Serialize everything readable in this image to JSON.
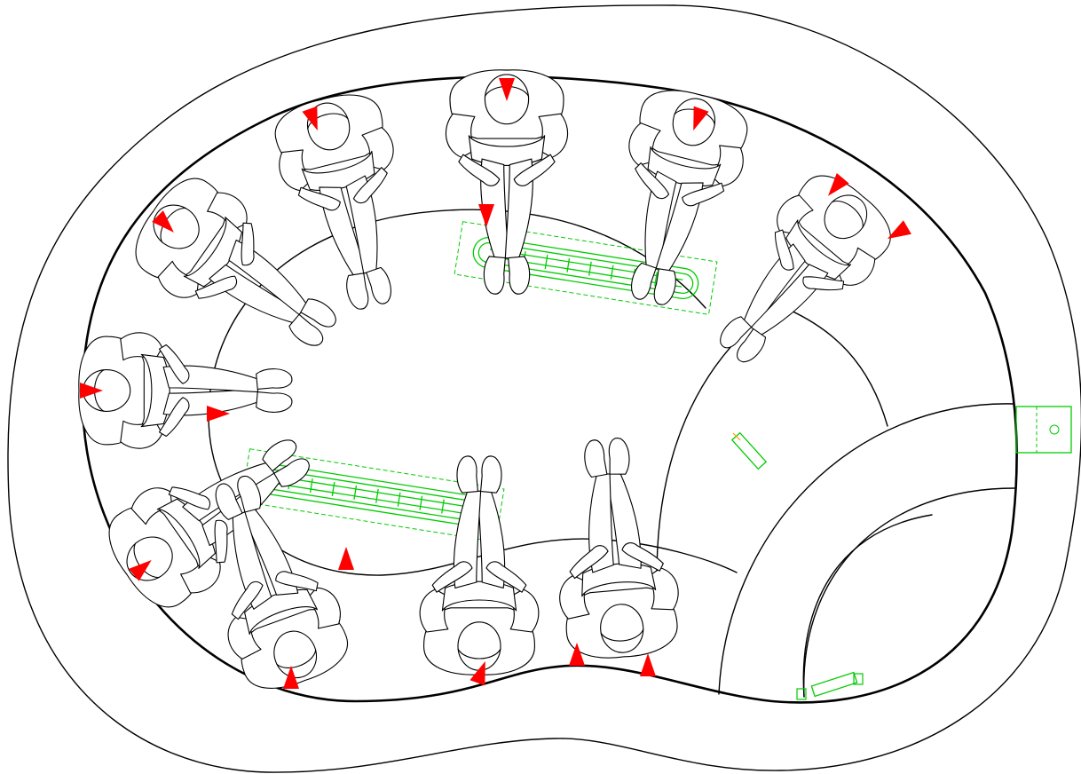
{
  "colors": {
    "outline": "#000000",
    "seat_marker": "#ff0000",
    "equipment": "#00cc00",
    "accent_warn": "#ff9900",
    "background": "#ffffff"
  },
  "icons": {
    "seat_marker": "red-triangle-marker",
    "jet": "green-jet-grille"
  }
}
